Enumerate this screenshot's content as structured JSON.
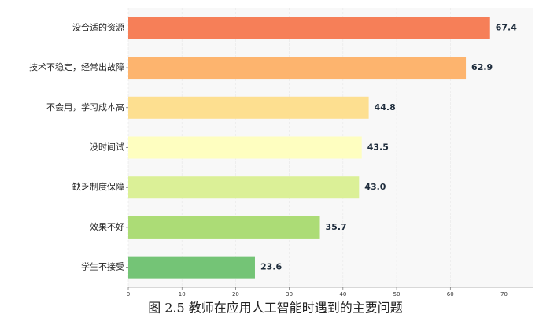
{
  "chart_data": {
    "type": "barh",
    "caption": "图 2.5 教师在应用人工智能时遇到的主要问题",
    "categories": [
      "没合适的资源",
      "技术不稳定，经常出故障",
      "不会用，学习成本高",
      "没时间试",
      "缺乏制度保障",
      "效果不好",
      "学生不接受"
    ],
    "values": [
      67.4,
      62.9,
      44.8,
      43.5,
      43.0,
      35.7,
      23.6
    ],
    "value_labels": [
      "67.4",
      "62.9",
      "44.8",
      "43.5",
      "43.0",
      "35.7",
      "23.6"
    ],
    "colors": [
      "#f67f58",
      "#fdb46e",
      "#fddf90",
      "#fefec0",
      "#dbf097",
      "#acdc76",
      "#74c476"
    ],
    "xlim": [
      0,
      75.5
    ],
    "xticks": [
      0,
      10,
      20,
      30,
      40,
      50,
      60,
      70
    ],
    "grid": true
  }
}
